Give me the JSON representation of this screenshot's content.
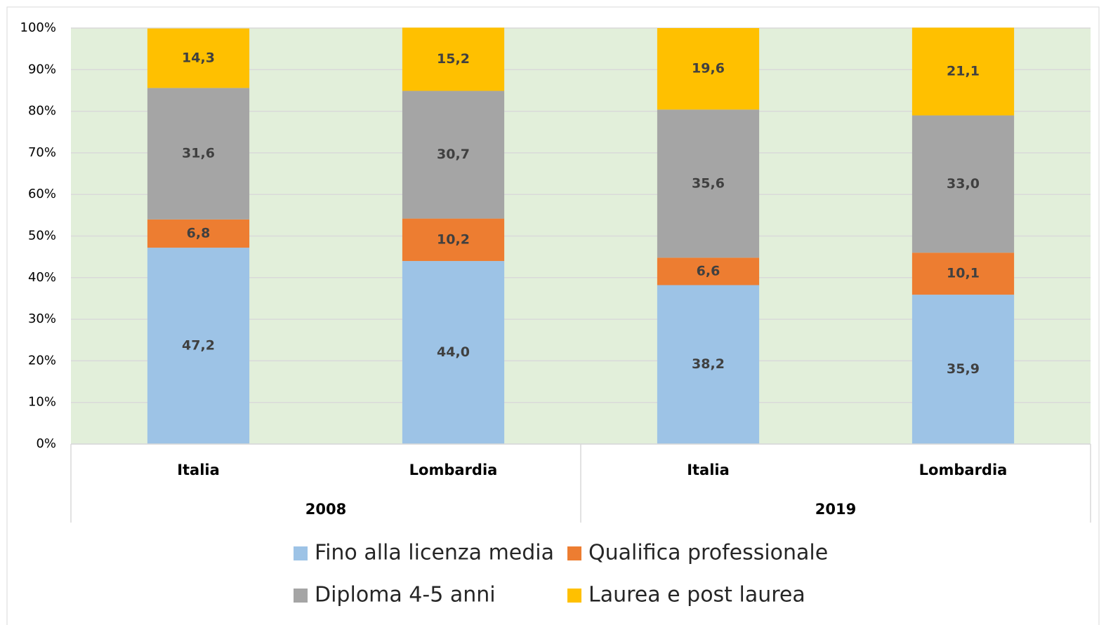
{
  "chart_data": {
    "type": "stacked_bar",
    "categories": [
      "Italia",
      "Lombardia",
      "Italia",
      "Lombardia"
    ],
    "groups": [
      "2008",
      "2019"
    ],
    "series": [
      {
        "name": "Fino alla licenza media",
        "color": "#9dc3e6",
        "values": [
          47.2,
          44.0,
          38.2,
          35.9
        ],
        "value_labels": [
          "47,2",
          "44,0",
          "38,2",
          "35,9"
        ]
      },
      {
        "name": "Qualifica professionale",
        "color": "#ed7d31",
        "values": [
          6.8,
          10.2,
          6.6,
          10.1
        ],
        "value_labels": [
          "6,8",
          "10,2",
          "6,6",
          "10,1"
        ]
      },
      {
        "name": "Diploma 4-5 anni",
        "color": "#a5a5a5",
        "values": [
          31.6,
          30.7,
          35.6,
          33.0
        ],
        "value_labels": [
          "31,6",
          "30,7",
          "35,6",
          "33,0"
        ]
      },
      {
        "name": "Laurea e post laurea",
        "color": "#ffc000",
        "values": [
          14.3,
          15.2,
          19.6,
          21.1
        ],
        "value_labels": [
          "14,3",
          "15,2",
          "19,6",
          "21,1"
        ]
      }
    ],
    "ylim": [
      0,
      100
    ],
    "yticks": [
      {
        "value": 0,
        "label": "0%"
      },
      {
        "value": 10,
        "label": "10%"
      },
      {
        "value": 20,
        "label": "20%"
      },
      {
        "value": 30,
        "label": "30%"
      },
      {
        "value": 40,
        "label": "40%"
      },
      {
        "value": 50,
        "label": "50%"
      },
      {
        "value": 60,
        "label": "60%"
      },
      {
        "value": 70,
        "label": "70%"
      },
      {
        "value": 80,
        "label": "80%"
      },
      {
        "value": 90,
        "label": "90%"
      },
      {
        "value": 100,
        "label": "100%"
      }
    ],
    "grid": true,
    "plot_background": "#e2efda",
    "legend": "bottom"
  }
}
